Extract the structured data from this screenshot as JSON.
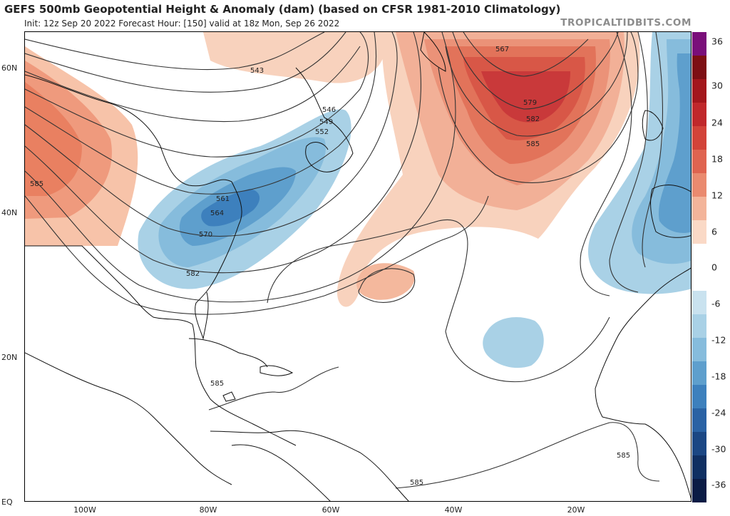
{
  "header": {
    "title": "GEFS 500mb Geopotential Height & Anomaly (dam) (based on CFSR 1981-2010 Climatology)",
    "subtitle": "Init: 12z Sep 20 2022   Forecast Hour: [150]   valid at 18z Mon, Sep 26 2022",
    "brand": "TROPICALTIDBITS.COM"
  },
  "axes": {
    "lat_labels": [
      "60N",
      "40N",
      "20N",
      "EQ"
    ],
    "lon_labels": [
      "100W",
      "80W",
      "60W",
      "40W",
      "20W"
    ]
  },
  "colorbar": {
    "labels": [
      "36",
      "30",
      "24",
      "18",
      "12",
      "6",
      "0",
      "-6",
      "-12",
      "-18",
      "-24",
      "-30",
      "-36"
    ],
    "colors": [
      "#7a0f7a",
      "#7d0f14",
      "#a3171c",
      "#c0282b",
      "#d24339",
      "#df6450",
      "#ea8a6f",
      "#f3b49a",
      "#fad9c6",
      "#ffffff",
      "#ffffff",
      "#c9e2ef",
      "#a9d1e6",
      "#86bcdc",
      "#5e9fcd",
      "#3d80bd",
      "#2a62a4",
      "#1b4784",
      "#0f2f62",
      "#0a1b45"
    ]
  },
  "contours": {
    "labels": [
      "543",
      "546",
      "549",
      "552",
      "561",
      "564",
      "570",
      "582",
      "585",
      "567",
      "579",
      "582",
      "585",
      "585",
      "585",
      "585"
    ]
  },
  "colors": {
    "positive_anomaly": "#e46d55",
    "strong_positive": "#c42e2e",
    "negative_anomaly": "#5a9fcf",
    "weak_negative": "#a8d0e6",
    "land_outline": "#111111",
    "contour": "#333333"
  }
}
